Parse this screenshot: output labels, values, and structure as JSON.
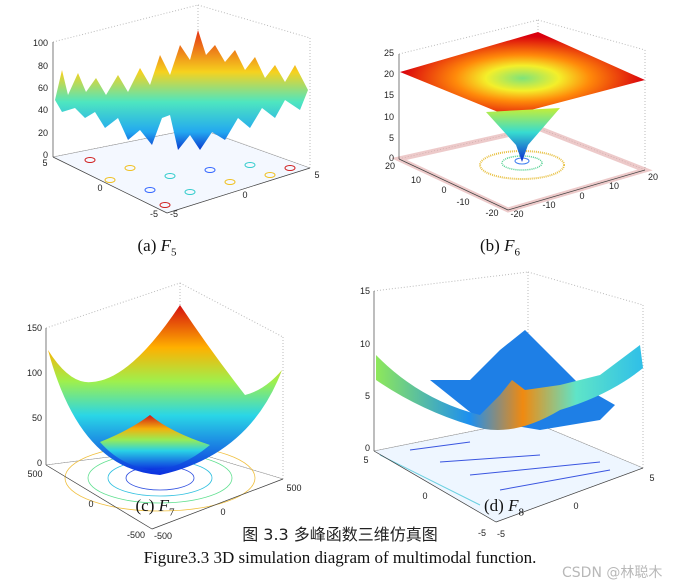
{
  "chart_data": [
    {
      "type": "surface",
      "panel": "a",
      "function": "F5",
      "caption_label": "(a)",
      "caption_fn": "F",
      "caption_sub": "5",
      "zticks": [
        "100",
        "80",
        "60",
        "40",
        "20",
        "0"
      ],
      "xticks": [
        "5",
        "0",
        "-5"
      ],
      "yticks": [
        "-5",
        "0",
        "5"
      ],
      "zlim": [
        0,
        100
      ],
      "xlim": [
        -5,
        5
      ],
      "ylim": [
        -5,
        5
      ]
    },
    {
      "type": "surface",
      "panel": "b",
      "function": "F6",
      "caption_label": "(b)",
      "caption_fn": "F",
      "caption_sub": "6",
      "zticks": [
        "25",
        "20",
        "15",
        "10",
        "5",
        "0"
      ],
      "xticks": [
        "20",
        "10",
        "0",
        "-10",
        "-20"
      ],
      "yticks": [
        "-20",
        "-10",
        "0",
        "10",
        "20"
      ],
      "zlim": [
        0,
        25
      ],
      "xlim": [
        -20,
        20
      ],
      "ylim": [
        -20,
        20
      ]
    },
    {
      "type": "surface",
      "panel": "c",
      "function": "F7",
      "caption_label": "(c)",
      "caption_fn": "F",
      "caption_sub": "7",
      "zticks": [
        "150",
        "100",
        "50",
        "0"
      ],
      "xticks": [
        "500",
        "0",
        "-500"
      ],
      "yticks": [
        "-500",
        "0",
        "500"
      ],
      "zlim": [
        0,
        150
      ],
      "xlim": [
        -500,
        500
      ],
      "ylim": [
        -500,
        500
      ]
    },
    {
      "type": "surface",
      "panel": "d",
      "function": "F8",
      "caption_label": "(d)",
      "caption_fn": "F",
      "caption_sub": "8",
      "zticks": [
        "15",
        "10",
        "5",
        "0"
      ],
      "xticks": [
        "5",
        "0",
        "-5"
      ],
      "yticks": [
        "-5",
        "0",
        "5"
      ],
      "zlim": [
        0,
        15
      ],
      "xlim": [
        -5,
        5
      ],
      "ylim": [
        -5,
        5
      ]
    }
  ],
  "figure": {
    "caption_zh": "图 3.3  多峰函数三维仿真图",
    "caption_en": "Figure3.3 3D simulation diagram of multimodal function."
  },
  "watermark": "CSDN @林聪木",
  "colors": {
    "high": "#d7191c",
    "mid": "#f5e52a",
    "low": "#1a3fd6",
    "cyan": "#2cd3e6"
  }
}
